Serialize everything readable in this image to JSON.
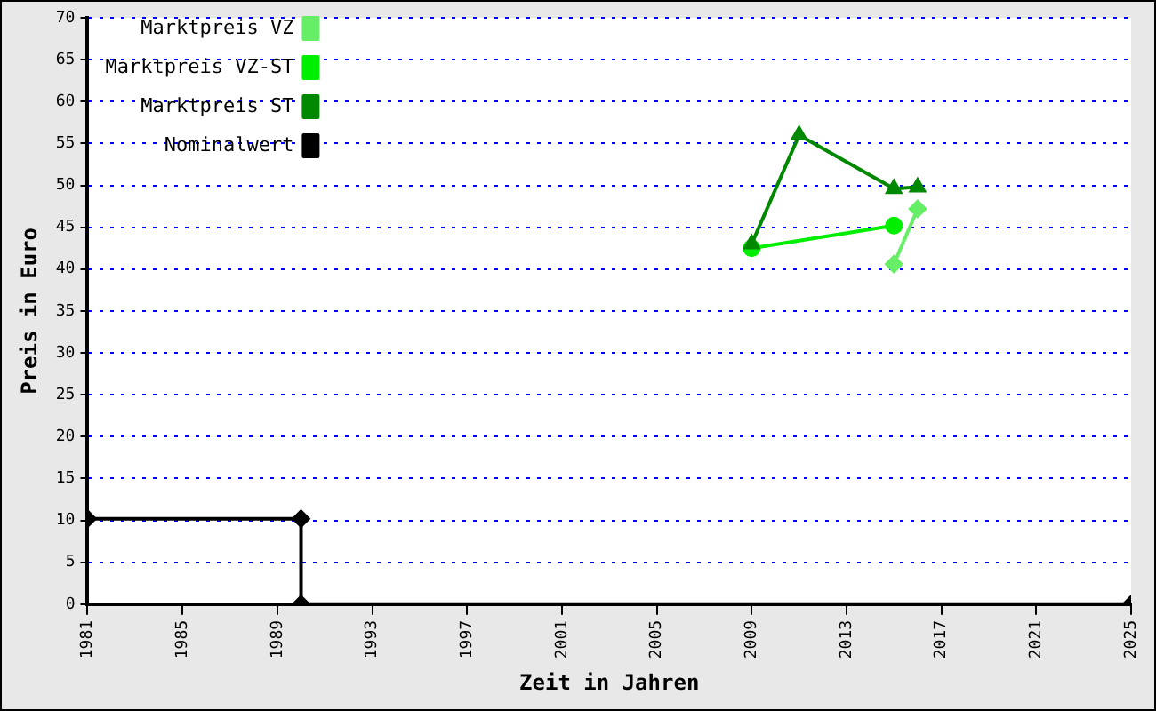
{
  "chart_data": {
    "type": "line",
    "xlabel": "Zeit in Jahren",
    "ylabel": "Preis in Euro",
    "xlim": [
      1981,
      2025
    ],
    "xticks": [
      1981,
      1985,
      1989,
      1993,
      1997,
      2001,
      2005,
      2009,
      2013,
      2017,
      2021,
      2025
    ],
    "ylim": [
      0,
      70
    ],
    "yticks": [
      0,
      5,
      10,
      15,
      20,
      25,
      30,
      35,
      40,
      45,
      50,
      55,
      60,
      65,
      70
    ],
    "grid": "y",
    "legend": "top left",
    "line_style": "solid",
    "series": [
      {
        "name": "Marktpreis VZ",
        "color": "#66ee66",
        "marker": "diamond",
        "x": [
          2015,
          2016
        ],
        "values": [
          40.6,
          47.2
        ]
      },
      {
        "name": "Marktpreis VZ-ST",
        "color": "#00ee00",
        "marker": "circle",
        "x": [
          2009,
          2015
        ],
        "values": [
          42.5,
          45.2
        ]
      },
      {
        "name": "Marktpreis ST",
        "color": "#008800",
        "marker": "triangle",
        "x": [
          2009,
          2011,
          2015,
          2016
        ],
        "values": [
          43,
          56,
          49.6,
          49.8
        ]
      },
      {
        "name": "Nominalwert",
        "color": "#000000",
        "marker": "diamond",
        "x": [
          1981,
          1990,
          1990,
          2025
        ],
        "values": [
          10.2,
          10.2,
          0,
          0
        ]
      }
    ]
  }
}
